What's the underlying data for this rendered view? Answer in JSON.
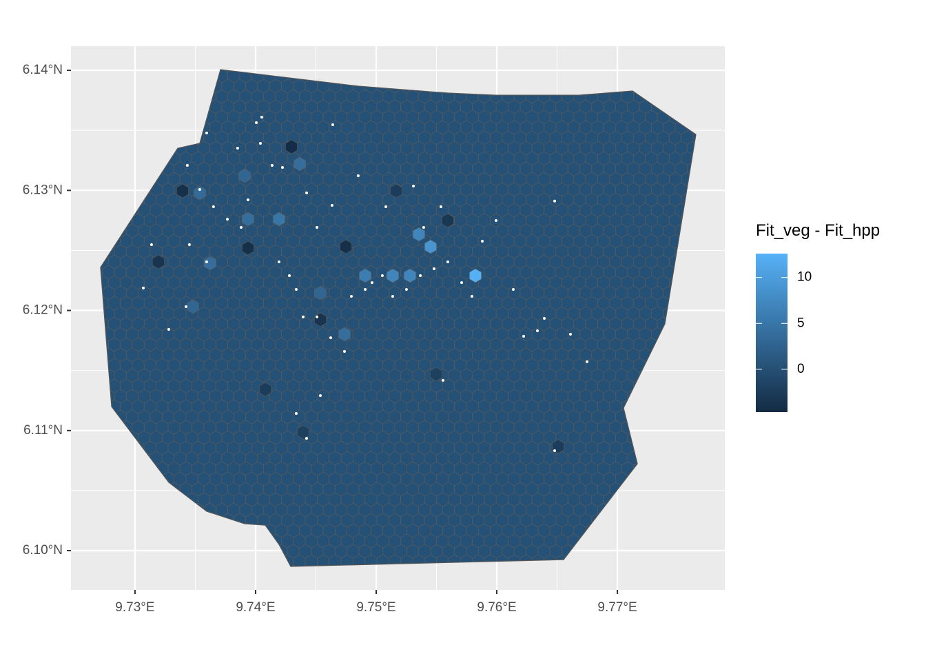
{
  "chart_data": {
    "type": "hexmap",
    "xlim": [
      9.72469,
      9.77891
    ],
    "ylim": [
      6.09673,
      6.14201
    ],
    "xticks": [
      {
        "value": 9.73,
        "label": "9.73°E"
      },
      {
        "value": 9.74,
        "label": "9.74°E"
      },
      {
        "value": 9.75,
        "label": "9.75°E"
      },
      {
        "value": 9.76,
        "label": "9.76°E"
      },
      {
        "value": 9.77,
        "label": "9.77°E"
      }
    ],
    "yticks": [
      {
        "value": 6.1,
        "label": "6.10°N"
      },
      {
        "value": 6.11,
        "label": "6.11°N"
      },
      {
        "value": 6.12,
        "label": "6.12°N"
      },
      {
        "value": 6.13,
        "label": "6.13°N"
      },
      {
        "value": 6.14,
        "label": "6.14°N"
      }
    ],
    "grid": true,
    "legend_title": "Fit_veg - Fit_hpp",
    "fill_lim": [
      -4.66,
      12.6
    ],
    "fill_ticks": [
      0,
      5,
      10
    ],
    "low_color": "#132B43",
    "high_color": "#56B1F7",
    "point_color": "#ffffff",
    "base_value": 0.2,
    "boundary": {
      "lon": [
        9.73709,
        9.74851,
        9.75594,
        9.75994,
        9.7668,
        9.77126,
        9.77651,
        9.77394,
        9.77051,
        9.77166,
        9.76554,
        9.74291,
        9.74194,
        9.7408,
        9.73909,
        9.73594,
        9.7328,
        9.72806,
        9.72714,
        9.73354,
        9.73537
      ],
      "lat": [
        6.14006,
        6.13868,
        6.13811,
        6.13793,
        6.13793,
        6.13828,
        6.13466,
        6.11888,
        6.11188,
        6.10723,
        6.09925,
        6.09868,
        6.10052,
        6.10212,
        6.10224,
        6.10327,
        6.10568,
        6.11199,
        6.12359,
        6.13351,
        6.13392
      ]
    },
    "hexes": [
      {
        "lon": 9.73394,
        "lat": 6.12996,
        "value": -4
      },
      {
        "lon": 9.73194,
        "lat": 6.12405,
        "value": -3.5
      },
      {
        "lon": 9.73937,
        "lat": 6.1252,
        "value": -4
      },
      {
        "lon": 9.74297,
        "lat": 6.13363,
        "value": -4.5
      },
      {
        "lon": 9.74537,
        "lat": 6.11923,
        "value": -3.5
      },
      {
        "lon": 9.74749,
        "lat": 6.12531,
        "value": -4
      },
      {
        "lon": 9.75166,
        "lat": 6.12996,
        "value": -2.5
      },
      {
        "lon": 9.75594,
        "lat": 6.12749,
        "value": -3
      },
      {
        "lon": 9.7408,
        "lat": 6.11343,
        "value": -2.5
      },
      {
        "lon": 9.76509,
        "lat": 6.10867,
        "value": -2.5
      },
      {
        "lon": 9.75497,
        "lat": 6.11469,
        "value": -2
      },
      {
        "lon": 9.74394,
        "lat": 6.10987,
        "value": -2
      },
      {
        "lon": 9.75823,
        "lat": 6.1229,
        "value": 12.5
      },
      {
        "lon": 9.75451,
        "lat": 6.12531,
        "value": 9
      },
      {
        "lon": 9.75354,
        "lat": 6.12634,
        "value": 7
      },
      {
        "lon": 9.74909,
        "lat": 6.1229,
        "value": 6
      },
      {
        "lon": 9.75137,
        "lat": 6.1229,
        "value": 7
      },
      {
        "lon": 9.7528,
        "lat": 6.1229,
        "value": 7
      },
      {
        "lon": 9.74366,
        "lat": 6.1322,
        "value": 4
      },
      {
        "lon": 9.74737,
        "lat": 6.11802,
        "value": 4
      },
      {
        "lon": 9.74194,
        "lat": 6.1276,
        "value": 5
      },
      {
        "lon": 9.73937,
        "lat": 6.1276,
        "value": 4
      },
      {
        "lon": 9.73623,
        "lat": 6.12393,
        "value": 4
      },
      {
        "lon": 9.7348,
        "lat": 6.12032,
        "value": 3
      },
      {
        "lon": 9.73909,
        "lat": 6.13122,
        "value": 3
      },
      {
        "lon": 9.73537,
        "lat": 6.12978,
        "value": 3.5
      },
      {
        "lon": 9.74537,
        "lat": 6.12146,
        "value": 3
      }
    ],
    "points": [
      [
        9.73594,
        6.13478
      ],
      [
        9.74051,
        6.1361
      ],
      [
        9.74006,
        6.13564
      ],
      [
        9.73851,
        6.13352
      ],
      [
        9.7404,
        6.13392
      ],
      [
        9.73434,
        6.13208
      ],
      [
        9.73537,
        6.13007
      ],
      [
        9.73651,
        6.12864
      ],
      [
        9.73766,
        6.1276
      ],
      [
        9.7388,
        6.12692
      ],
      [
        9.73451,
        6.12548
      ],
      [
        9.73594,
        6.12405
      ],
      [
        9.73423,
        6.12032
      ],
      [
        9.7328,
        6.11842
      ],
      [
        9.73069,
        6.12187
      ],
      [
        9.73137,
        6.12548
      ],
      [
        9.74194,
        6.12405
      ],
      [
        9.7428,
        6.1229
      ],
      [
        9.74337,
        6.12175
      ],
      [
        9.74394,
        6.11946
      ],
      [
        9.74509,
        6.11946
      ],
      [
        9.74623,
        6.11773
      ],
      [
        9.74737,
        6.11659
      ],
      [
        9.74794,
        6.12118
      ],
      [
        9.74909,
        6.12175
      ],
      [
        9.74966,
        6.12232
      ],
      [
        9.75051,
        6.1229
      ],
      [
        9.75137,
        6.12118
      ],
      [
        9.75251,
        6.12175
      ],
      [
        9.75366,
        6.1229
      ],
      [
        9.7548,
        6.12347
      ],
      [
        9.75594,
        6.12405
      ],
      [
        9.75709,
        6.12232
      ],
      [
        9.75794,
        6.12118
      ],
      [
        9.7588,
        6.12577
      ],
      [
        9.75994,
        6.12749
      ],
      [
        9.76137,
        6.12175
      ],
      [
        9.76223,
        6.11785
      ],
      [
        9.76337,
        6.11831
      ],
      [
        9.76394,
        6.11934
      ],
      [
        9.7648,
        6.10832
      ],
      [
        9.76611,
        6.11802
      ],
      [
        9.76749,
        6.11573
      ],
      [
        9.75554,
        6.11418
      ],
      [
        9.74423,
        6.10935
      ],
      [
        9.74337,
        6.11142
      ],
      [
        9.74537,
        6.11291
      ],
      [
        9.7464,
        6.13547
      ],
      [
        9.74634,
        6.12875
      ],
      [
        9.74851,
        6.13122
      ],
      [
        9.7508,
        6.12864
      ],
      [
        9.75309,
        6.13036
      ],
      [
        9.75537,
        6.12864
      ],
      [
        9.75394,
        6.12692
      ],
      [
        9.74509,
        6.12692
      ],
      [
        9.74137,
        6.13208
      ],
      [
        9.74223,
        6.13191
      ],
      [
        9.73937,
        6.12921
      ],
      [
        9.74423,
        6.12979
      ],
      [
        9.7648,
        6.12911
      ]
    ]
  }
}
